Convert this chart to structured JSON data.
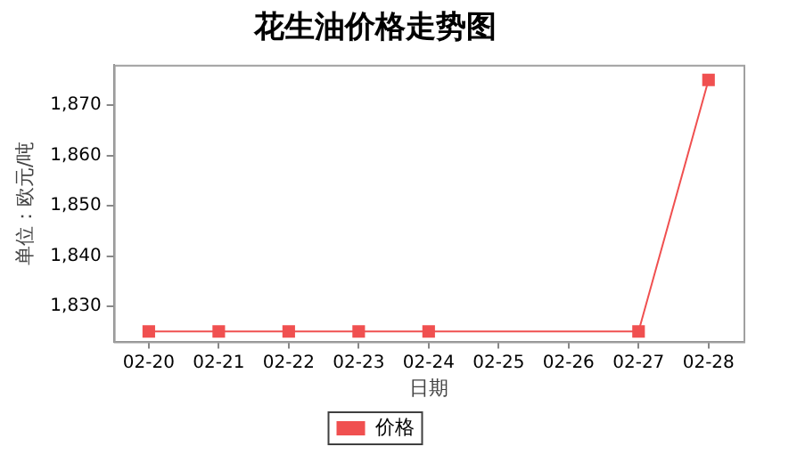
{
  "chart_data": {
    "type": "line",
    "title": "花生油价格走势图",
    "xlabel": "日期",
    "ylabel": "单位：欧元/吨",
    "categories": [
      "02-20",
      "02-21",
      "02-22",
      "02-23",
      "02-24",
      "02-25",
      "02-26",
      "02-27",
      "02-28"
    ],
    "series": [
      {
        "name": "价格",
        "color": "#f05050",
        "values": [
          1825,
          1825,
          1825,
          1825,
          1825,
          null,
          null,
          1825,
          1875
        ]
      }
    ],
    "ylim": [
      1823,
      1878
    ],
    "yticks": [
      {
        "value": 1830,
        "label": "1,830"
      },
      {
        "value": 1840,
        "label": "1,840"
      },
      {
        "value": 1850,
        "label": "1,850"
      },
      {
        "value": 1860,
        "label": "1,860"
      },
      {
        "value": 1870,
        "label": "1,870"
      }
    ],
    "grid": false,
    "legend": "bottom",
    "marker": "square",
    "line_style": "solid"
  }
}
